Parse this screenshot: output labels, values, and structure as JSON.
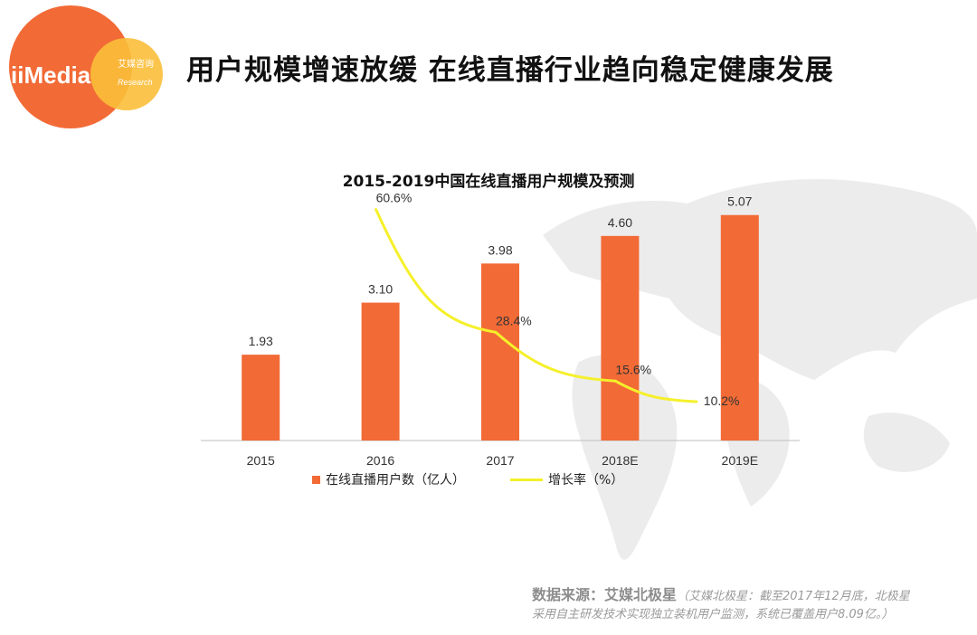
{
  "header": {
    "title": "用户规模增速放缓 在线直播行业趋向稳定健康发展",
    "logo_text": "iiMedia",
    "logo_sub_cn": "艾媒咨询",
    "logo_sub_en": "Research"
  },
  "chart_data": {
    "type": "bar",
    "title": "2015-2019中国在线直播用户规模及预测",
    "categories": [
      "2015",
      "2016",
      "2017",
      "2018E",
      "2019E"
    ],
    "series": [
      {
        "name": "在线直播用户数（亿人）",
        "type": "bar",
        "values": [
          1.93,
          3.1,
          3.98,
          4.6,
          5.07
        ],
        "labels": [
          "1.93",
          "3.10",
          "3.98",
          "4.60",
          "5.07"
        ],
        "color": "#f26a36"
      },
      {
        "name": "增长率（%）",
        "type": "line",
        "values": [
          null,
          60.6,
          28.4,
          15.6,
          10.2
        ],
        "labels": [
          "",
          "60.6%",
          "28.4%",
          "15.6%",
          "10.2%"
        ],
        "color": "#f5f02a"
      }
    ],
    "ylim": [
      0,
      6
    ],
    "y2lim": [
      0,
      70
    ],
    "legend": "bottom",
    "grid": false
  },
  "source": {
    "label": "数据来源：艾媒北极星",
    "note_line1": "（艾媒北极星：截至2017年12月底，北极星",
    "note_line2": "采用自主研发技术实现独立装机用户监测，系统已覆盖用户8.09亿。）"
  }
}
